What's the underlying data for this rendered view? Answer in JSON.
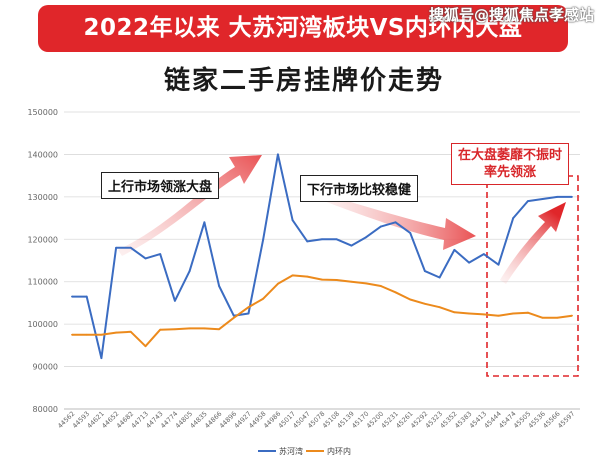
{
  "banner": {
    "title": "2022年以来 大苏河湾板块VS内环内大盘"
  },
  "watermark": "搜狐号@搜狐焦点孝感站",
  "subtitle": "链家二手房挂牌价走势",
  "annotations": {
    "up_market": "上行市场领涨大盘",
    "down_market": "下行市场比较稳健",
    "lead_line1": "在大盘萎靡不振时",
    "lead_line2": "率先领涨"
  },
  "colors": {
    "series1": "#3b6cc2",
    "series2": "#ec8a1c",
    "accent": "#e0262a"
  },
  "chart_data": {
    "type": "line",
    "ylim": [
      80000,
      150000
    ],
    "yticks": [
      80000,
      90000,
      100000,
      110000,
      120000,
      130000,
      140000,
      150000
    ],
    "ytick_labels": [
      "80000",
      "90000",
      "100000",
      "110000",
      "120000",
      "130000",
      "140000",
      "150000"
    ],
    "x_labels": [
      "44562",
      "44593",
      "44621",
      "44652",
      "44682",
      "44713",
      "44743",
      "44774",
      "44805",
      "44835",
      "44866",
      "44896",
      "44927",
      "44958",
      "44986",
      "45017",
      "45047",
      "45078",
      "45108",
      "45139",
      "45170",
      "45200",
      "45231",
      "45261",
      "45292",
      "45323",
      "45352",
      "45383",
      "45413",
      "45444",
      "45474",
      "45505",
      "45536",
      "45566",
      "45597"
    ],
    "series": [
      {
        "name": "苏河湾",
        "color": "#3b6cc2",
        "values": [
          106500,
          106500,
          92000,
          118000,
          118000,
          115500,
          116500,
          105500,
          112500,
          124000,
          109000,
          102000,
          102500,
          120000,
          140000,
          124500,
          119500,
          120000,
          120000,
          118500,
          120500,
          123000,
          124000,
          121500,
          112500,
          111000,
          117500,
          114500,
          116500,
          114000,
          125000,
          129000,
          129500,
          130000,
          130000
        ]
      },
      {
        "name": "内环内",
        "color": "#ec8a1c",
        "values": [
          97500,
          97500,
          97500,
          98000,
          98200,
          94800,
          98700,
          98800,
          99000,
          99000,
          98800,
          101500,
          104000,
          106000,
          109500,
          111500,
          111200,
          110500,
          110400,
          110000,
          109600,
          109000,
          107500,
          105800,
          104800,
          104000,
          102800,
          102500,
          102300,
          102000,
          102500,
          102700,
          101500,
          101500,
          102000
        ]
      }
    ],
    "grid": true,
    "legend": "bottom"
  }
}
